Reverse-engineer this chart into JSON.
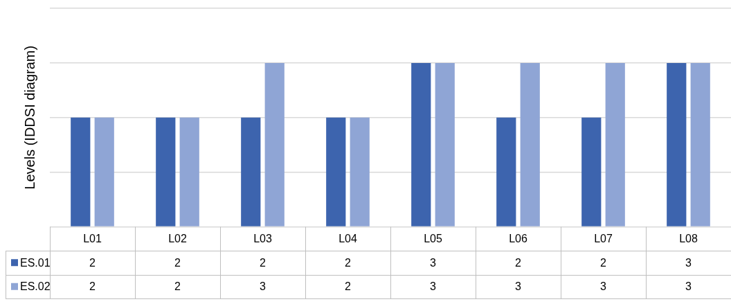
{
  "chart_data": {
    "type": "bar",
    "ylabel": "Levels (IDDSI diagram)",
    "categories": [
      "L01",
      "L02",
      "L03",
      "L04",
      "L05",
      "L06",
      "L07",
      "L08"
    ],
    "series": [
      {
        "name": "ES.01",
        "color": "#3d64ae",
        "values": [
          2,
          2,
          2,
          2,
          3,
          2,
          2,
          3
        ]
      },
      {
        "name": "ES.02",
        "color": "#8fa5d5",
        "values": [
          2,
          2,
          3,
          2,
          3,
          3,
          3,
          3
        ]
      }
    ],
    "ylim": [
      0,
      4
    ],
    "yticks": [
      {
        "value": 0,
        "label": null
      },
      {
        "value": 1,
        "label": null
      },
      {
        "value": 2,
        "label": null
      },
      {
        "value": 3,
        "label": null
      },
      {
        "value": 4,
        "label": null
      }
    ],
    "tick_labels": "x",
    "grid": "y",
    "legend": "bottom",
    "data_labels": true
  }
}
